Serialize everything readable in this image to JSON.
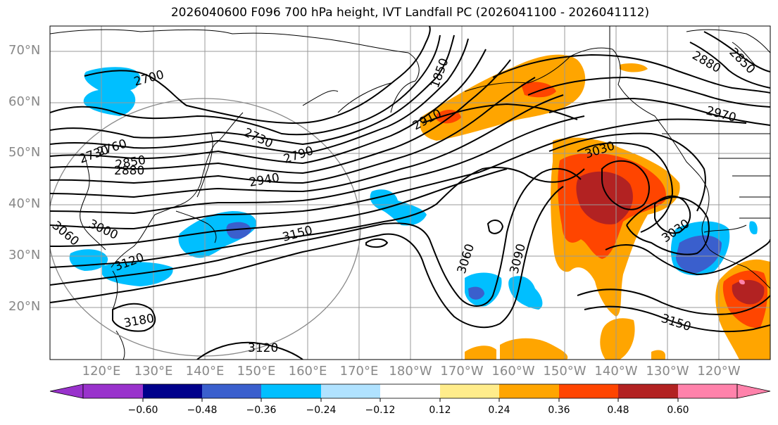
{
  "title": "2026040600 F096 700 hPa height, IVT Landfall PC (2026041100 - 2026041112)",
  "lat_labels": [
    "70°N",
    "60°N",
    "50°N",
    "40°N",
    "30°N",
    "20°N"
  ],
  "lon_labels": [
    "120°E",
    "130°E",
    "140°E",
    "150°E",
    "160°E",
    "170°E",
    "180°W",
    "170°W",
    "160°W",
    "150°W",
    "140°W",
    "130°W",
    "120°W"
  ],
  "contour_labels": [
    "2700",
    "2730",
    "2760",
    "2790",
    "2850",
    "2880",
    "2910",
    "2940",
    "2970",
    "3000",
    "3030",
    "3060",
    "3090",
    "3120",
    "3150",
    "3180",
    "1850",
    "2880",
    "3030",
    "3150",
    "3120",
    "3060",
    "2850",
    "2730"
  ],
  "colorbar": {
    "ticks": [
      "−0.60",
      "−0.48",
      "−0.36",
      "−0.24",
      "−0.12",
      "0.12",
      "0.24",
      "0.36",
      "0.48",
      "0.60"
    ],
    "colors": [
      "#9932cc",
      "#00008b",
      "#3a5fcd",
      "#00bfff",
      "#b0e2ff",
      "#ffffff",
      "#ffec8b",
      "#ffa500",
      "#ff4500",
      "#b22222",
      "#ff82ab"
    ]
  }
}
